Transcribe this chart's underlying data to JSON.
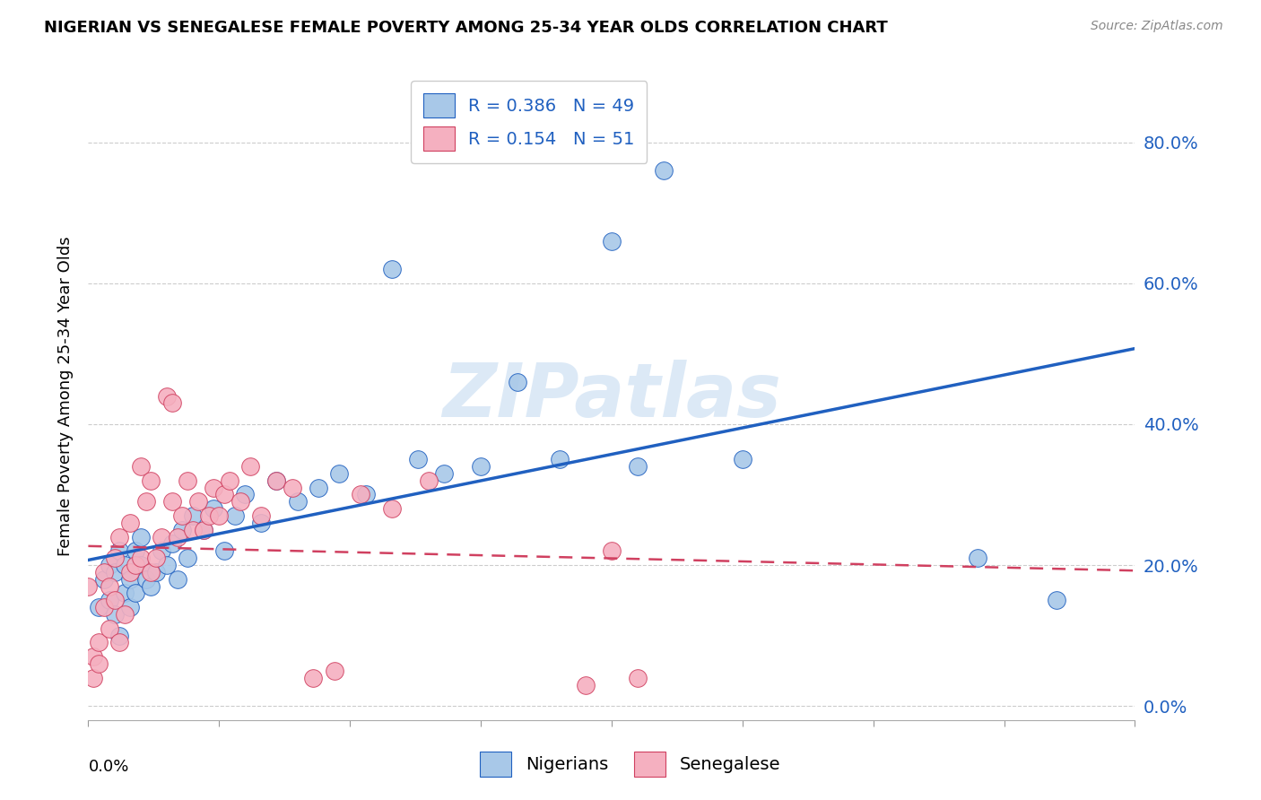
{
  "title": "NIGERIAN VS SENEGALESE FEMALE POVERTY AMONG 25-34 YEAR OLDS CORRELATION CHART",
  "source": "Source: ZipAtlas.com",
  "ylabel": "Female Poverty Among 25-34 Year Olds",
  "yticks": [
    "0.0%",
    "20.0%",
    "40.0%",
    "60.0%",
    "80.0%"
  ],
  "ytick_vals": [
    0.0,
    0.2,
    0.4,
    0.6,
    0.8
  ],
  "xticks_minor": [
    0.0,
    0.025,
    0.05,
    0.075,
    0.1,
    0.125,
    0.15,
    0.175,
    0.2
  ],
  "xlim": [
    0.0,
    0.2
  ],
  "ylim": [
    -0.02,
    0.9
  ],
  "nigerians_color": "#a8c8e8",
  "senegalese_color": "#f5b0c0",
  "trendline_nigerian_color": "#2060c0",
  "trendline_senegalese_color": "#d04060",
  "watermark": "ZIPatlas",
  "legend1_label": "R = 0.386   N = 49",
  "legend2_label": "R = 0.154   N = 51",
  "nigerians_x": [
    0.002,
    0.003,
    0.004,
    0.004,
    0.005,
    0.005,
    0.006,
    0.006,
    0.007,
    0.007,
    0.008,
    0.008,
    0.009,
    0.009,
    0.01,
    0.01,
    0.011,
    0.012,
    0.013,
    0.014,
    0.015,
    0.016,
    0.017,
    0.018,
    0.019,
    0.02,
    0.022,
    0.024,
    0.026,
    0.028,
    0.03,
    0.033,
    0.036,
    0.04,
    0.044,
    0.048,
    0.053,
    0.058,
    0.063,
    0.068,
    0.075,
    0.082,
    0.09,
    0.1,
    0.105,
    0.11,
    0.125,
    0.17,
    0.185
  ],
  "nigerians_y": [
    0.14,
    0.18,
    0.15,
    0.2,
    0.13,
    0.19,
    0.22,
    0.1,
    0.16,
    0.2,
    0.18,
    0.14,
    0.22,
    0.16,
    0.2,
    0.24,
    0.18,
    0.17,
    0.19,
    0.22,
    0.2,
    0.23,
    0.18,
    0.25,
    0.21,
    0.27,
    0.25,
    0.28,
    0.22,
    0.27,
    0.3,
    0.26,
    0.32,
    0.29,
    0.31,
    0.33,
    0.3,
    0.62,
    0.35,
    0.33,
    0.34,
    0.46,
    0.35,
    0.66,
    0.34,
    0.76,
    0.35,
    0.21,
    0.15
  ],
  "senegalese_x": [
    0.0,
    0.001,
    0.001,
    0.002,
    0.002,
    0.003,
    0.003,
    0.004,
    0.004,
    0.005,
    0.005,
    0.006,
    0.006,
    0.007,
    0.008,
    0.008,
    0.009,
    0.01,
    0.01,
    0.011,
    0.012,
    0.012,
    0.013,
    0.014,
    0.015,
    0.016,
    0.016,
    0.017,
    0.018,
    0.019,
    0.02,
    0.021,
    0.022,
    0.023,
    0.024,
    0.025,
    0.026,
    0.027,
    0.029,
    0.031,
    0.033,
    0.036,
    0.039,
    0.043,
    0.047,
    0.052,
    0.058,
    0.065,
    0.095,
    0.1,
    0.105
  ],
  "senegalese_y": [
    0.17,
    0.04,
    0.07,
    0.09,
    0.06,
    0.14,
    0.19,
    0.11,
    0.17,
    0.15,
    0.21,
    0.09,
    0.24,
    0.13,
    0.26,
    0.19,
    0.2,
    0.21,
    0.34,
    0.29,
    0.19,
    0.32,
    0.21,
    0.24,
    0.44,
    0.29,
    0.43,
    0.24,
    0.27,
    0.32,
    0.25,
    0.29,
    0.25,
    0.27,
    0.31,
    0.27,
    0.3,
    0.32,
    0.29,
    0.34,
    0.27,
    0.32,
    0.31,
    0.04,
    0.05,
    0.3,
    0.28,
    0.32,
    0.03,
    0.22,
    0.04
  ]
}
